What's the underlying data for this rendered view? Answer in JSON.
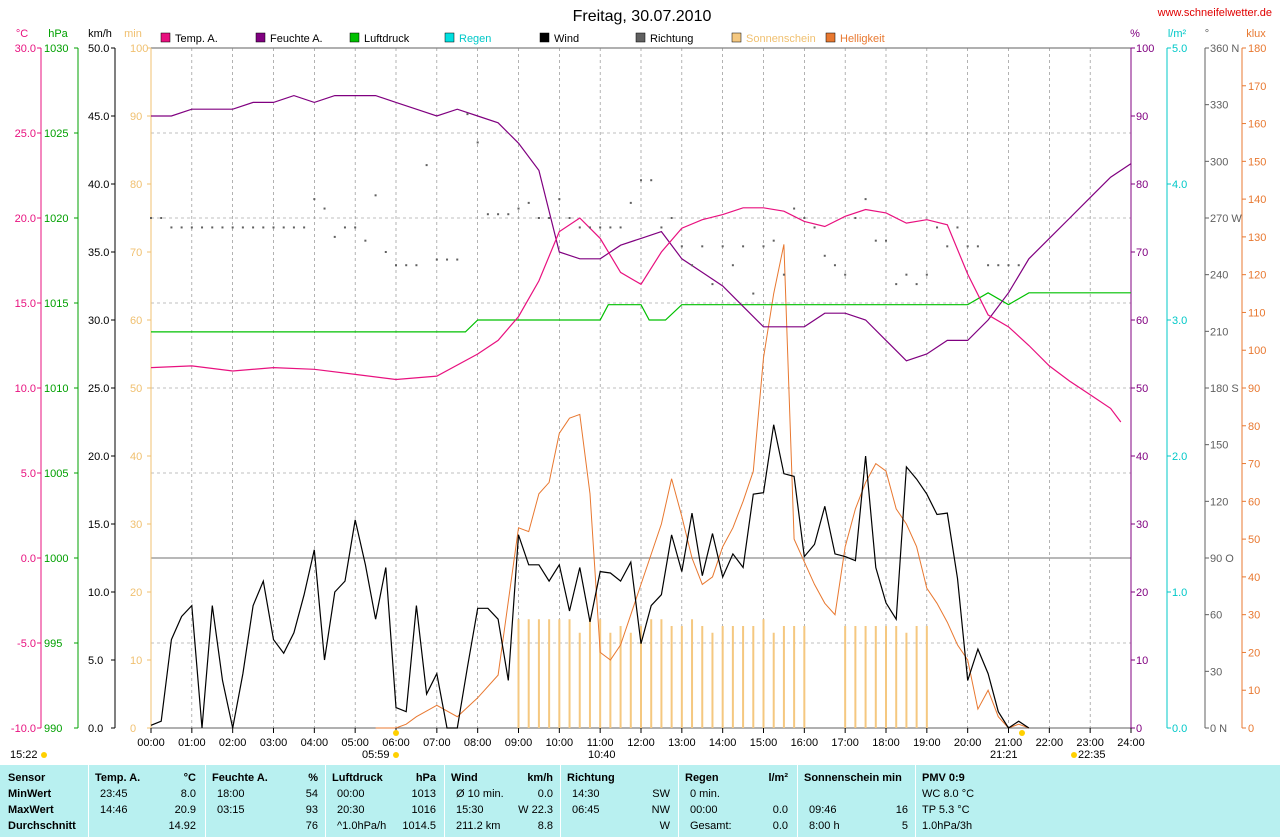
{
  "title": "Freitag, 30.07.2010",
  "website": "www.schneifelwetter.de",
  "colors": {
    "temp": "#e8117f",
    "humidity": "#800080",
    "pressure": "#00c000",
    "rain": "#00e0e0",
    "wind": "#000000",
    "direction": "#606060",
    "sunshine": "#f5c880",
    "brightness": "#e87830",
    "stats_bg": "#b8f0f0"
  },
  "legend": [
    {
      "label": "Temp. A.",
      "color": "#e8117f"
    },
    {
      "label": "Feuchte A.",
      "color": "#800080"
    },
    {
      "label": "Luftdruck",
      "color": "#00c000"
    },
    {
      "label": "Regen",
      "color": "#00e0e0"
    },
    {
      "label": "Wind",
      "color": "#000000"
    },
    {
      "label": "Richtung",
      "color": "#606060"
    },
    {
      "label": "Sonnenschein",
      "color": "#f5c880"
    },
    {
      "label": "Helligkeit",
      "color": "#e87830"
    }
  ],
  "axis_units": {
    "temp": "°C",
    "pressure": "hPa",
    "wind": "km/h",
    "sun": "min",
    "humidity": "%",
    "rain": "l/m²",
    "direction": "°",
    "brightness": "klux"
  },
  "axis_ticks": {
    "temp": [
      "30.0",
      "25.0",
      "20.0",
      "15.0",
      "10.0",
      "5.0",
      "0.0",
      "-5.0",
      "-10.0"
    ],
    "pressure": [
      "1030",
      "1025",
      "1020",
      "1015",
      "1010",
      "1005",
      "1000",
      "995",
      "990"
    ],
    "wind": [
      "50.0",
      "45.0",
      "40.0",
      "35.0",
      "30.0",
      "25.0",
      "20.0",
      "15.0",
      "10.0",
      "5.0",
      "0.0"
    ],
    "sun": [
      "100",
      "90",
      "80",
      "70",
      "60",
      "50",
      "40",
      "30",
      "20",
      "10",
      "0"
    ],
    "humidity": [
      "100",
      "90",
      "80",
      "70",
      "60",
      "50",
      "40",
      "30",
      "20",
      "10",
      "0"
    ],
    "rain": [
      "5.0",
      "4.0",
      "3.0",
      "2.0",
      "1.0",
      "0.0"
    ],
    "direction": [
      "360 N",
      "330",
      "300",
      "270 W",
      "240",
      "210",
      "180 S",
      "150",
      "120",
      "90 O",
      "60",
      "30",
      "0 N"
    ],
    "brightness": [
      "180",
      "170",
      "160",
      "150",
      "140",
      "130",
      "120",
      "110",
      "100",
      "90",
      "80",
      "70",
      "60",
      "50",
      "40",
      "30",
      "20",
      "10",
      "0"
    ]
  },
  "time_labels": [
    "00:00",
    "01:00",
    "02:00",
    "03:00",
    "04:00",
    "05:00",
    "06:00",
    "07:00",
    "08:00",
    "09:00",
    "10:00",
    "11:00",
    "12:00",
    "13:00",
    "14:00",
    "15:00",
    "16:00",
    "17:00",
    "18:00",
    "19:00",
    "20:00",
    "21:00",
    "22:00",
    "23:00",
    "24:00"
  ],
  "bottom_times": {
    "left": "15:22",
    "sunrise": "05:59",
    "noon": "10:40",
    "sunset": "21:21",
    "night": "22:35"
  },
  "chart_data": {
    "type": "line",
    "x_unit": "hour",
    "xlim": [
      0,
      24
    ],
    "series": [
      {
        "name": "Temp. A.",
        "axis": "°C",
        "ylim": [
          -10,
          30
        ],
        "x": [
          0,
          1,
          2,
          3,
          4,
          5,
          6,
          7,
          8,
          8.5,
          9,
          9.5,
          10,
          10.5,
          11,
          11.5,
          12,
          12.5,
          13,
          13.5,
          14,
          14.5,
          15,
          15.5,
          16,
          16.5,
          17,
          17.5,
          18,
          18.5,
          19,
          19.5,
          20,
          20.5,
          21,
          21.5,
          22,
          22.5,
          23,
          23.5,
          23.75
        ],
        "y": [
          11.2,
          11.3,
          11.0,
          11.2,
          11.1,
          10.8,
          10.5,
          10.7,
          12.0,
          12.8,
          14.2,
          16.3,
          19.2,
          20.0,
          18.8,
          16.8,
          16.1,
          18.0,
          19.4,
          19.9,
          20.2,
          20.6,
          20.6,
          20.4,
          19.8,
          19.5,
          20.1,
          20.5,
          20.3,
          19.7,
          19.9,
          19.6,
          16.7,
          14.3,
          13.6,
          12.5,
          11.3,
          10.4,
          9.6,
          8.8,
          8.0
        ]
      },
      {
        "name": "Feuchte A.",
        "axis": "%",
        "ylim": [
          0,
          100
        ],
        "x": [
          0,
          0.5,
          1,
          1.5,
          2,
          2.5,
          3,
          3.5,
          4,
          4.5,
          5,
          5.5,
          6,
          6.5,
          7,
          7.5,
          8,
          8.5,
          9,
          9.5,
          10,
          10.5,
          11,
          11.5,
          12,
          12.5,
          13,
          13.5,
          14,
          14.5,
          15,
          15.5,
          16,
          16.5,
          17,
          17.5,
          18,
          18.5,
          19,
          19.5,
          20,
          20.5,
          21,
          21.5,
          22,
          22.5,
          23,
          23.5,
          24
        ],
        "y": [
          90,
          90,
          91,
          91,
          91,
          92,
          92,
          93,
          92,
          93,
          93,
          93,
          92,
          91,
          90,
          91,
          90,
          89,
          86,
          82,
          70,
          69,
          69,
          71,
          72,
          73,
          69,
          67,
          65,
          62,
          59,
          59,
          59,
          61,
          61,
          60,
          57,
          54,
          55,
          57,
          57,
          60,
          64,
          69,
          72,
          75,
          78,
          81,
          83
        ]
      },
      {
        "name": "Luftdruck",
        "axis": "hPa",
        "ylim": [
          990,
          1030
        ],
        "x": [
          0,
          1,
          2,
          3,
          4,
          5,
          6,
          7,
          7.7,
          8,
          9,
          10,
          11,
          11.2,
          12,
          12.2,
          12.6,
          13,
          14,
          15,
          16,
          17,
          18,
          19,
          20,
          20.5,
          21,
          21.5,
          22,
          23,
          24
        ],
        "y": [
          1013.3,
          1013.3,
          1013.3,
          1013.3,
          1013.3,
          1013.3,
          1013.3,
          1013.3,
          1013.3,
          1014.0,
          1014.0,
          1014.0,
          1014.0,
          1014.9,
          1014.9,
          1014.0,
          1014.0,
          1014.9,
          1014.9,
          1014.9,
          1014.9,
          1014.9,
          1014.9,
          1014.9,
          1014.9,
          1015.6,
          1014.9,
          1015.6,
          1015.6,
          1015.6,
          1015.6
        ]
      },
      {
        "name": "Wind",
        "axis": "km/h",
        "ylim": [
          0,
          50
        ],
        "x": [
          0,
          0.25,
          0.5,
          0.75,
          1,
          1.25,
          1.5,
          1.75,
          2,
          2.25,
          2.5,
          2.75,
          3,
          3.25,
          3.5,
          3.75,
          4,
          4.25,
          4.5,
          4.75,
          5,
          5.25,
          5.5,
          5.75,
          6,
          6.25,
          6.5,
          6.75,
          7,
          7.25,
          7.5,
          7.75,
          8,
          8.25,
          8.5,
          8.75,
          9,
          9.25,
          9.5,
          9.75,
          10,
          10.25,
          10.5,
          10.75,
          11,
          11.25,
          11.5,
          11.75,
          12,
          12.25,
          12.5,
          12.75,
          13,
          13.25,
          13.5,
          13.75,
          14,
          14.25,
          14.5,
          14.75,
          15,
          15.25,
          15.5,
          15.75,
          16,
          16.25,
          16.5,
          16.75,
          17,
          17.25,
          17.5,
          17.75,
          18,
          18.25,
          18.5,
          18.75,
          19,
          19.25,
          19.5,
          19.75,
          20,
          20.25,
          20.5,
          20.75,
          21,
          21.25,
          21.5
        ],
        "y": [
          0.2,
          0.5,
          6.5,
          8.2,
          9.0,
          0.0,
          9.0,
          3.5,
          0.0,
          4.0,
          9.0,
          10.8,
          6.5,
          5.5,
          7.0,
          9.8,
          13.1,
          5.0,
          10.0,
          10.8,
          15.3,
          12.0,
          8.0,
          11.8,
          1.5,
          1.2,
          9.0,
          2.5,
          4.0,
          0.0,
          0.0,
          4.5,
          8.8,
          8.8,
          8.0,
          3.5,
          14.2,
          12.0,
          12.0,
          10.8,
          12.0,
          8.6,
          11.8,
          7.8,
          11.5,
          11.4,
          10.8,
          12.2,
          6.2,
          9.0,
          9.8,
          14.2,
          11.5,
          15.8,
          11.2,
          14.3,
          11.1,
          12.8,
          11.8,
          17.2,
          17.3,
          22.3,
          18.7,
          18.5,
          12.6,
          13.5,
          16.3,
          12.8,
          12.6,
          12.3,
          20.0,
          11.8,
          9.2,
          8.0,
          19.2,
          18.3,
          17.2,
          15.7,
          15.8,
          11.0,
          3.5,
          5.8,
          4.0,
          1.2,
          0.0,
          0.5,
          0.0
        ]
      },
      {
        "name": "Richtung",
        "axis": "°",
        "ylim": [
          0,
          360
        ],
        "x": [
          0,
          0.25,
          0.5,
          0.75,
          1,
          1.25,
          1.5,
          1.75,
          2,
          2.25,
          2.5,
          2.75,
          3,
          3.25,
          3.5,
          3.75,
          4,
          4.25,
          4.5,
          4.75,
          5,
          5.25,
          5.5,
          5.75,
          6,
          6.25,
          6.5,
          6.75,
          7,
          7.25,
          7.5,
          7.75,
          8,
          8.25,
          8.5,
          8.75,
          9,
          9.25,
          9.5,
          9.75,
          10,
          10.25,
          10.5,
          10.75,
          11,
          11.25,
          11.5,
          11.75,
          12,
          12.25,
          12.5,
          12.75,
          13,
          13.25,
          13.5,
          13.75,
          14,
          14.25,
          14.5,
          14.75,
          15,
          15.25,
          15.5,
          15.75,
          16,
          16.25,
          16.5,
          16.75,
          17,
          17.25,
          17.5,
          17.75,
          18,
          18.25,
          18.5,
          18.75,
          19,
          19.25,
          19.5,
          19.75,
          20,
          20.25,
          20.5,
          20.75,
          21,
          21.25
        ],
        "y": [
          270,
          270,
          265,
          265,
          265,
          265,
          265,
          265,
          265,
          265,
          265,
          265,
          265,
          265,
          265,
          265,
          280,
          275,
          260,
          265,
          265,
          258,
          282,
          252,
          245,
          245,
          245,
          298,
          248,
          248,
          248,
          325,
          310,
          272,
          272,
          272,
          275,
          278,
          270,
          270,
          280,
          270,
          265,
          265,
          265,
          265,
          265,
          278,
          290,
          290,
          265,
          270,
          255,
          245,
          255,
          235,
          255,
          245,
          255,
          230,
          255,
          258,
          240,
          275,
          270,
          265,
          250,
          245,
          240,
          270,
          280,
          258,
          258,
          235,
          240,
          235,
          240,
          265,
          255,
          265,
          255,
          255,
          245,
          245,
          245,
          245
        ]
      },
      {
        "name": "Sonnenschein",
        "axis": "min",
        "ylim": [
          0,
          100
        ],
        "x": [
          9.0,
          9.25,
          9.5,
          9.75,
          10.0,
          10.25,
          10.5,
          10.75,
          11.0,
          11.25,
          11.5,
          11.75,
          12.0,
          12.25,
          12.5,
          12.75,
          13.0,
          13.25,
          13.5,
          13.75,
          14.0,
          14.25,
          14.5,
          14.75,
          15.0,
          15.25,
          15.5,
          15.75,
          16.0,
          17.0,
          17.25,
          17.5,
          17.75,
          18.0,
          18.25,
          18.5,
          18.75,
          19.0
        ],
        "y": [
          16,
          16,
          16,
          16,
          16,
          16,
          14,
          16,
          16,
          14,
          15,
          14,
          15,
          16,
          16,
          15,
          15,
          16,
          15,
          14,
          15,
          15,
          15,
          15,
          16,
          14,
          15,
          15,
          15,
          15,
          15,
          15,
          15,
          15,
          15,
          14,
          15,
          15
        ]
      },
      {
        "name": "Helligkeit",
        "axis": "klux",
        "ylim": [
          0,
          180
        ],
        "x": [
          5.5,
          6,
          6.25,
          6.5,
          7,
          7.5,
          8,
          8.5,
          9,
          9.25,
          9.5,
          9.75,
          10,
          10.25,
          10.5,
          10.75,
          11,
          11.25,
          11.5,
          11.75,
          12,
          12.5,
          12.75,
          13,
          13.25,
          13.5,
          13.75,
          14,
          14.25,
          14.5,
          14.75,
          15,
          15.25,
          15.5,
          15.75,
          16,
          16.25,
          16.5,
          16.75,
          17,
          17.25,
          17.5,
          17.75,
          18,
          18.25,
          18.5,
          18.75,
          19,
          19.25,
          19.5,
          19.75,
          20,
          20.25,
          20.5,
          20.75,
          21,
          21.25,
          21.5
        ],
        "y": [
          0,
          0,
          1,
          3,
          6,
          3,
          8,
          14,
          53,
          52,
          62,
          65,
          78,
          82,
          83,
          62,
          20,
          18,
          22,
          30,
          38,
          54,
          66,
          56,
          45,
          38,
          40,
          48,
          53,
          60,
          68,
          98,
          115,
          128,
          50,
          44,
          38,
          33,
          30,
          48,
          58,
          65,
          70,
          68,
          58,
          54,
          48,
          37,
          33,
          28,
          22,
          18,
          5,
          10,
          3,
          0,
          1,
          0
        ]
      }
    ],
    "title": "Freitag, 30.07.2010",
    "xlabel": "",
    "ylabel": ""
  },
  "stats": {
    "sensor_col": {
      "header": "Sensor",
      "rows": [
        "MinWert",
        "MaxWert",
        "Durchschnitt"
      ]
    },
    "columns": [
      {
        "key": "temp",
        "title": "Temp. A.",
        "unit": "°C",
        "rows": [
          {
            "time": "23:45",
            "value": "8.0"
          },
          {
            "time": "14:46",
            "value": "20.9"
          },
          {
            "time": "",
            "value": "14.92"
          }
        ]
      },
      {
        "key": "hum",
        "title": "Feuchte A.",
        "unit": "%",
        "rows": [
          {
            "time": "18:00",
            "value": "54"
          },
          {
            "time": "03:15",
            "value": "93"
          },
          {
            "time": "",
            "value": "76"
          }
        ]
      },
      {
        "key": "press",
        "title": "Luftdruck",
        "unit": "hPa",
        "rows": [
          {
            "time": "00:00",
            "value": "1013"
          },
          {
            "time": "20:30",
            "value": "1016"
          },
          {
            "time": "^1.0hPa/h",
            "value": "1014.5"
          }
        ]
      },
      {
        "key": "wind",
        "title": "Wind",
        "unit": "km/h",
        "rows": [
          {
            "time": "Ø 10 min.",
            "value": "0.0"
          },
          {
            "time": "15:30",
            "value": "W 22.3"
          },
          {
            "time": "211.2 km",
            "value": "8.8"
          }
        ]
      },
      {
        "key": "dir",
        "title": "Richtung",
        "unit": "",
        "rows": [
          {
            "time": "14:30",
            "value": "SW"
          },
          {
            "time": "06:45",
            "value": "NW"
          },
          {
            "time": "",
            "value": "W"
          }
        ]
      },
      {
        "key": "rain",
        "title": "Regen",
        "unit": "l/m²",
        "rows": [
          {
            "time": "0 min.",
            "value": ""
          },
          {
            "time": "00:00",
            "value": "0.0"
          },
          {
            "time": "Gesamt:",
            "value": "0.0"
          }
        ]
      },
      {
        "key": "sun",
        "title": "Sonnenschein min",
        "unit": "",
        "rows": [
          {
            "time": "",
            "value": ""
          },
          {
            "time": "09:46",
            "value": "16"
          },
          {
            "time": "8:00 h",
            "value": "5"
          }
        ]
      },
      {
        "key": "pmv",
        "title": "PMV 0:9",
        "unit": "",
        "rows": [
          {
            "time": "WC 8.0 °C",
            "value": ""
          },
          {
            "time": "TP 5.3 °C",
            "value": ""
          },
          {
            "time": "1.0hPa/3h",
            "value": ""
          }
        ]
      }
    ]
  }
}
